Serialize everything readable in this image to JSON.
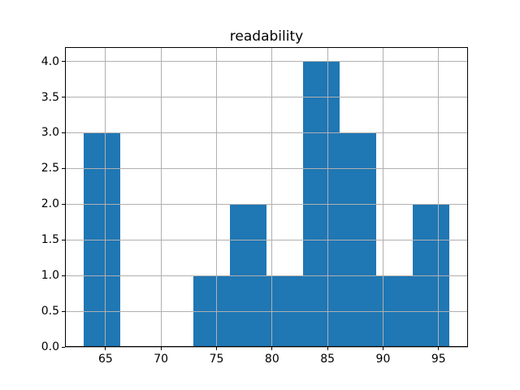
{
  "chart_data": {
    "type": "bar",
    "subtype": "histogram",
    "title": "readability",
    "xlabel": "",
    "ylabel": "",
    "bin_edges": [
      63.0,
      66.3,
      69.6,
      72.9,
      76.2,
      79.5,
      82.8,
      86.1,
      89.4,
      92.7,
      96.0
    ],
    "counts": [
      3,
      0,
      0,
      1,
      2,
      1,
      4,
      3,
      1,
      2
    ],
    "xlim": [
      61.35,
      97.65
    ],
    "ylim": [
      0,
      4.2
    ],
    "x_ticks": [
      65,
      70,
      75,
      80,
      85,
      90,
      95
    ],
    "x_tick_labels": [
      "65",
      "70",
      "75",
      "80",
      "85",
      "90",
      "95"
    ],
    "y_ticks": [
      0.0,
      0.5,
      1.0,
      1.5,
      2.0,
      2.5,
      3.0,
      3.5,
      4.0
    ],
    "y_tick_labels": [
      "0.0",
      "0.5",
      "1.0",
      "1.5",
      "2.0",
      "2.5",
      "3.0",
      "3.5",
      "4.0"
    ],
    "grid": true,
    "legend": false,
    "bar_color": "#1f77b4",
    "grid_color": "#b0b0b0",
    "axes_color": "#000000",
    "background_color": "#ffffff"
  }
}
